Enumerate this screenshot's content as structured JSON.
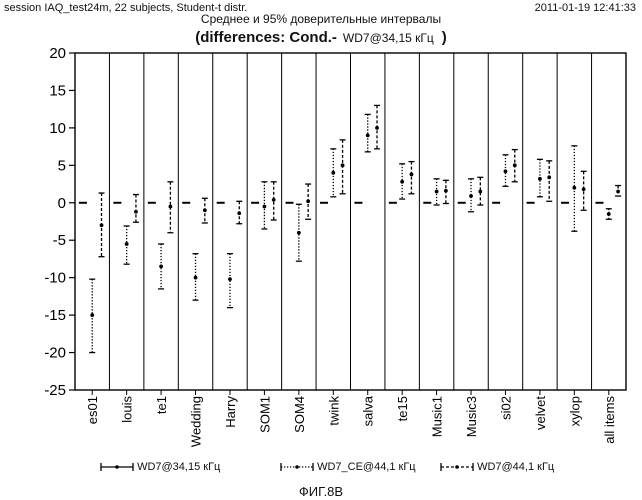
{
  "header": {
    "session": "session IAQ_test24m, 22 subjects, Student-t distr.",
    "timestamp": "2011-01-19 12:41:33"
  },
  "title": {
    "line1": "Среднее и 95% доверительные интервалы",
    "line2_prefix": "(differences: Cond.-",
    "line2_ref": "WD7@34,15 кГц",
    "line2_suffix": ")"
  },
  "figure_caption": "ФИГ.8B",
  "chart_data": {
    "type": "errorbar",
    "categories": [
      "es01",
      "louis",
      "te1",
      "Wedding",
      "Harry",
      "SOM1",
      "SOM4",
      "twink",
      "salva",
      "te15",
      "Music1",
      "Music3",
      "si02",
      "velvet",
      "xylop",
      "all items"
    ],
    "ylim": [
      -25,
      20
    ],
    "yticks": [
      -25,
      -20,
      -15,
      -10,
      -5,
      0,
      5,
      10,
      15,
      20
    ],
    "grid": "vertical separators",
    "legend_position": "bottom",
    "series": [
      {
        "name": "WD7@34,15 кГц",
        "style": "solid",
        "mean": [
          0,
          0,
          0,
          0,
          0,
          0,
          0,
          0,
          0,
          0,
          0,
          0,
          0,
          0,
          0,
          0
        ],
        "low": [
          0,
          0,
          0,
          0,
          0,
          0,
          0,
          0,
          0,
          0,
          0,
          0,
          0,
          0,
          0,
          0
        ],
        "high": [
          0,
          0,
          0,
          0,
          0,
          0,
          0,
          0,
          0,
          0,
          0,
          0,
          0,
          0,
          0,
          0
        ]
      },
      {
        "name": "WD7_CE@44,1 кГц",
        "style": "dotted",
        "mean": [
          -15,
          -5.5,
          -8.5,
          -10,
          -10.2,
          -0.5,
          -4,
          4,
          9,
          2.8,
          1.5,
          0.9,
          4.2,
          3.2,
          2,
          -1.5
        ],
        "low": [
          -20,
          -8.2,
          -11.5,
          -13,
          -14,
          -3.5,
          -7.8,
          0.8,
          6.8,
          0.5,
          -0.3,
          -1.2,
          2.2,
          0.8,
          -3.8,
          -2.2
        ],
        "high": [
          -10.2,
          -3.1,
          -5.5,
          -6.8,
          -6.8,
          2.8,
          -0.2,
          7.2,
          11.8,
          5.2,
          3.2,
          3.2,
          6.4,
          5.8,
          7.6,
          -0.8
        ]
      },
      {
        "name": "WD7@44,1 кГц",
        "style": "dashed",
        "mean": [
          -3,
          -1.2,
          -0.5,
          -1,
          -1.4,
          0.4,
          0.2,
          5,
          10,
          3.8,
          1.6,
          1.5,
          5,
          3.4,
          1.8,
          1.5
        ],
        "low": [
          -7.2,
          -2.6,
          -4,
          -2.7,
          -2.8,
          -2.3,
          -2.2,
          1.2,
          7.2,
          1.2,
          -0.1,
          -0.3,
          2.8,
          0.2,
          -1,
          0.9
        ],
        "high": [
          1.3,
          1.1,
          2.8,
          0.6,
          0.2,
          2.8,
          2.5,
          8.4,
          13,
          5.5,
          3,
          3.4,
          7.1,
          5.6,
          4.2,
          2.3
        ]
      }
    ]
  }
}
